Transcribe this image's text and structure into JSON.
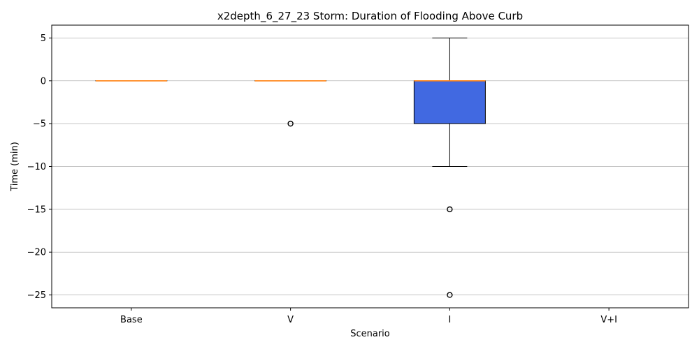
{
  "chart_data": {
    "type": "box",
    "title": "x2depth_6_27_23 Storm: Duration of Flooding Above Curb",
    "xlabel": "Scenario",
    "ylabel": "Time (min)",
    "ylim": [
      -26.5,
      6.5
    ],
    "yticks": [
      5,
      0,
      -5,
      -10,
      -15,
      -20,
      -25
    ],
    "ytick_labels": [
      "5",
      "0",
      "−5",
      "−10",
      "−15",
      "−20",
      "−25"
    ],
    "grid": "y",
    "categories": [
      "Base",
      "V",
      "I",
      "V+I"
    ],
    "boxes": [
      {
        "category": "Base",
        "q1": 0,
        "median": 0,
        "q3": 0,
        "whisker_low": 0,
        "whisker_high": 0,
        "outliers": []
      },
      {
        "category": "V",
        "q1": 0,
        "median": 0,
        "q3": 0,
        "whisker_low": 0,
        "whisker_high": 0,
        "outliers": [
          -5
        ]
      },
      {
        "category": "I",
        "q1": -5,
        "median": 0,
        "q3": 0,
        "whisker_low": -10,
        "whisker_high": 5,
        "outliers": [
          -15,
          -25
        ]
      },
      {
        "category": "V+I",
        "empty": true
      }
    ],
    "colors": {
      "box_fill": "#4169e1",
      "median": "#ff7f0e",
      "grid": "#b0b0b0",
      "axis": "#000000"
    }
  }
}
